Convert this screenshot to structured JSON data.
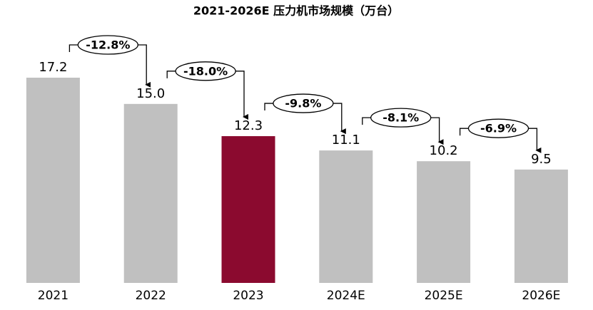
{
  "chart_data": {
    "type": "bar",
    "title": "2021-2026E 压力机市场规模（万台）",
    "categories": [
      "2021",
      "2022",
      "2023",
      "2024E",
      "2025E",
      "2026E"
    ],
    "values": [
      17.2,
      15.0,
      12.3,
      11.1,
      10.2,
      9.5
    ],
    "value_labels": [
      "17.2",
      "15.0",
      "12.3",
      "11.1",
      "10.2",
      "9.5"
    ],
    "colors": [
      "#c0c0c0",
      "#c0c0c0",
      "#8b0a2f",
      "#c0c0c0",
      "#c0c0c0",
      "#c0c0c0"
    ],
    "change_labels": [
      "-12.8%",
      "-18.0%",
      "-9.8%",
      "-8.1%",
      "-6.9%"
    ]
  }
}
